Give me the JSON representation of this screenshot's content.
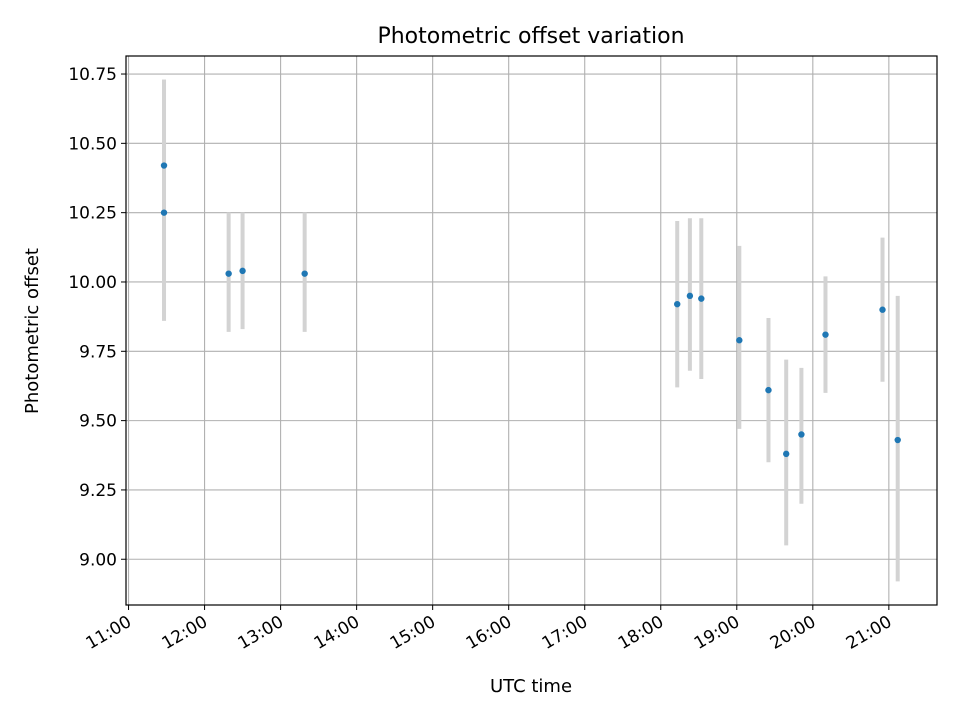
{
  "chart_data": {
    "type": "scatter",
    "title": "Photometric offset variation",
    "xlabel": "UTC time",
    "ylabel": "Photometric offset",
    "x_axis_type": "time",
    "xlim": [
      "10:58",
      "21:38"
    ],
    "ylim": [
      8.835,
      10.815
    ],
    "x_ticks": [
      "11:00",
      "12:00",
      "13:00",
      "14:00",
      "15:00",
      "16:00",
      "17:00",
      "18:00",
      "19:00",
      "20:00",
      "21:00"
    ],
    "y_ticks": [
      "9.00",
      "9.25",
      "9.50",
      "9.75",
      "10.00",
      "10.25",
      "10.50",
      "10.75"
    ],
    "grid": true,
    "legend": "none",
    "colors": {
      "points": "#1f77b4",
      "error_bars": "#d3d3d3",
      "grid": "#b0b0b0"
    },
    "points": [
      {
        "x": "11:28",
        "y": 10.42,
        "yerr_low": 9.86,
        "yerr_high": 10.73
      },
      {
        "x": "11:28",
        "y": 10.25,
        "yerr_low": 9.86,
        "yerr_high": 10.73
      },
      {
        "x": "12:19",
        "y": 10.03,
        "yerr_low": 9.82,
        "yerr_high": 10.25
      },
      {
        "x": "12:30",
        "y": 10.04,
        "yerr_low": 9.83,
        "yerr_high": 10.25
      },
      {
        "x": "13:19",
        "y": 10.03,
        "yerr_low": 9.82,
        "yerr_high": 10.25
      },
      {
        "x": "18:13",
        "y": 9.92,
        "yerr_low": 9.62,
        "yerr_high": 10.22
      },
      {
        "x": "18:23",
        "y": 9.95,
        "yerr_low": 9.68,
        "yerr_high": 10.23
      },
      {
        "x": "18:32",
        "y": 9.94,
        "yerr_low": 9.65,
        "yerr_high": 10.23
      },
      {
        "x": "19:02",
        "y": 9.79,
        "yerr_low": 9.47,
        "yerr_high": 10.13
      },
      {
        "x": "19:25",
        "y": 9.61,
        "yerr_low": 9.35,
        "yerr_high": 9.87
      },
      {
        "x": "19:39",
        "y": 9.38,
        "yerr_low": 9.05,
        "yerr_high": 9.72
      },
      {
        "x": "19:51",
        "y": 9.45,
        "yerr_low": 9.2,
        "yerr_high": 9.69
      },
      {
        "x": "20:10",
        "y": 9.81,
        "yerr_low": 9.6,
        "yerr_high": 10.02
      },
      {
        "x": "20:55",
        "y": 9.9,
        "yerr_low": 9.64,
        "yerr_high": 10.16
      },
      {
        "x": "21:07",
        "y": 9.43,
        "yerr_low": 8.92,
        "yerr_high": 9.95
      }
    ]
  }
}
